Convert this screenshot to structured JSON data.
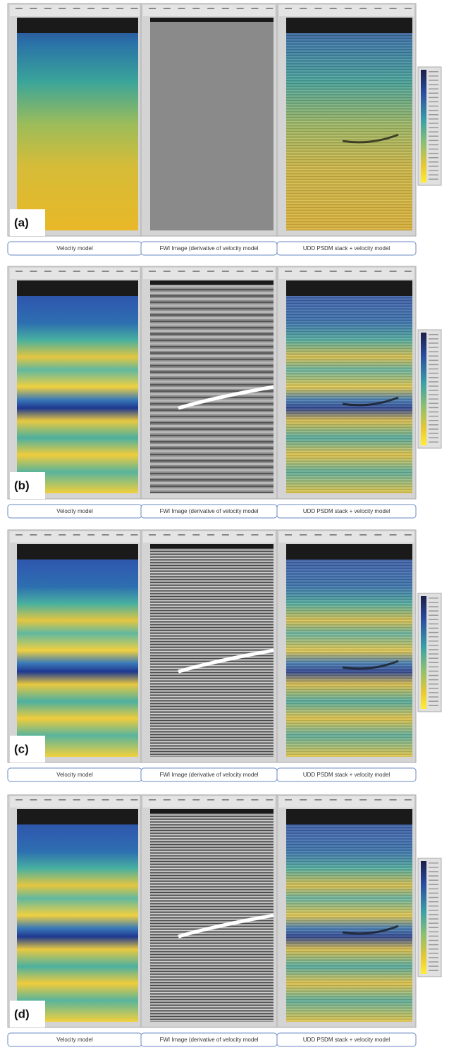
{
  "rows": [
    {
      "label": "(a)",
      "captions": [
        "Velocity model",
        "FWI Image (derivative of velocity model",
        "UDD PSDM stack + velocity model"
      ]
    },
    {
      "label": "(b)",
      "captions": [
        "Velocity model",
        "FWI Image (derivative of velocity model",
        "UDD PSDM stack + velocity model"
      ]
    },
    {
      "label": "(c)",
      "captions": [
        "Velocity model",
        "FWI Image (derivative of velocity model",
        "UDD PSDM stack + velocity model"
      ]
    },
    {
      "label": "(d)",
      "captions": [
        "Velocity model",
        "FWI Image (derivative of velocity model",
        "UDD PSDM stack + velocity model"
      ]
    }
  ]
}
